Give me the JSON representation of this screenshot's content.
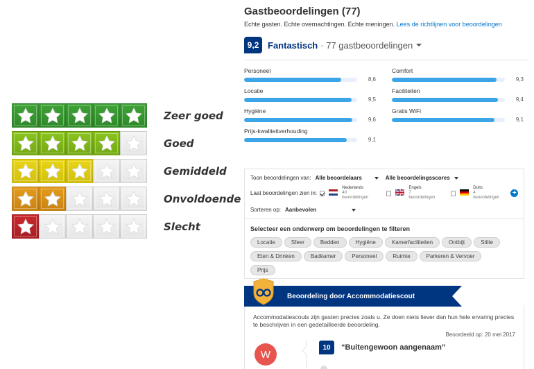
{
  "legend": {
    "rows": [
      {
        "label": "Zeer goed",
        "stars": 5,
        "color": "#3fa236",
        "dark": "#2f8a2a"
      },
      {
        "label": "Goed",
        "stars": 4,
        "color": "#8bc41e",
        "dark": "#74a915"
      },
      {
        "label": "Gemiddeld",
        "stars": 3,
        "color": "#e9d616",
        "dark": "#d2c00d"
      },
      {
        "label": "Onvoldoende",
        "stars": 2,
        "color": "#e49b1c",
        "dark": "#c98312"
      },
      {
        "label": "Slecht",
        "stars": 1,
        "color": "#c9282d",
        "dark": "#a81f24"
      }
    ]
  },
  "reviews": {
    "title": "Gastbeoordelingen (77)",
    "subtitle": "Echte gasten. Echte overnachtingen. Echte meningen.",
    "guidelines_link": "Lees de richtlijnen voor beoordelingen",
    "score": "9,2",
    "score_word": "Fantastisch",
    "score_count": "· 77 gastbeoordelingen",
    "categories": [
      {
        "label": "Personeel",
        "value": "8,6",
        "fraction": 0.86
      },
      {
        "label": "Comfort",
        "value": "9,3",
        "fraction": 0.93
      },
      {
        "label": "Locatie",
        "value": "9,5",
        "fraction": 0.95
      },
      {
        "label": "Faciliteiten",
        "value": "9,4",
        "fraction": 0.94
      },
      {
        "label": "Hygiëne",
        "value": "9,6",
        "fraction": 0.96
      },
      {
        "label": "Gratis WiFi",
        "value": "9,1",
        "fraction": 0.91
      },
      {
        "label": "Prijs-kwaliteitverhouding",
        "value": "9,1",
        "fraction": 0.91
      }
    ]
  },
  "filters": {
    "show_label": "Toon beoordelingen van:",
    "reviewers_select": "Alle beoordelaars",
    "scores_select": "Alle beoordelingsscores",
    "lang_label": "Laat beoordelingen zien in:",
    "languages": [
      {
        "name": "Nederlands",
        "count": "40 beoordelingen",
        "checked": true,
        "flag": "nl"
      },
      {
        "name": "Engels",
        "count": "7 beoordelingen",
        "checked": false,
        "flag": "gb"
      },
      {
        "name": "Duits",
        "count": "4 beoordelingen",
        "checked": false,
        "flag": "de"
      }
    ],
    "plus": "+",
    "sort_label": "Sorteren op:",
    "sort_select": "Aanbevolen",
    "topic_title": "Selecteer een onderwerp om beoordelingen te filteren",
    "topics": [
      "Locatie",
      "Sfeer",
      "Bedden",
      "Hygiëne",
      "Kamerfaciliteiten",
      "Ontbijt",
      "Stilte",
      "Eten & Drinken",
      "Badkamer",
      "Personeel",
      "Ruimte",
      "Parkeren & Vervoer",
      "Prijs"
    ]
  },
  "scout": {
    "banner": "Beoordeling door Accommodatiescout",
    "description": "Accommodatiescouts zijn gasten precies zoals u. Ze doen niets liever dan hun hele ervaring precies te beschrijven in een gedetailleerde beoordeling.",
    "date": "Beoordeeld op: 20 mei 2017",
    "avatar": "W",
    "review_score": "10",
    "review_title": "“Buitengewoon aangenaam”"
  }
}
